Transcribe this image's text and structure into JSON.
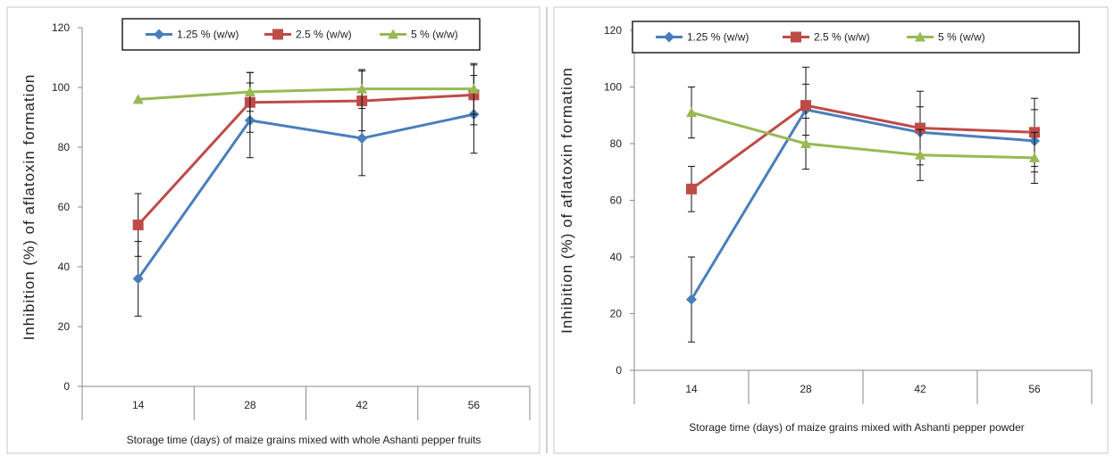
{
  "chart_data": [
    {
      "type": "line",
      "categories": [
        "14",
        "28",
        "42",
        "56"
      ],
      "ylabel": "Inhibition (%) of aflatoxin formation",
      "xlabel": "Storage time (days) of maize grains mixed with whole Ashanti pepper fruits",
      "ylim": [
        0,
        120
      ],
      "yticks": [
        0,
        20,
        40,
        60,
        80,
        100,
        120
      ],
      "legend_position": "top",
      "grid": false,
      "series": [
        {
          "name": "1.25 % (w/w)",
          "color": "#4a7ebb",
          "marker": "diamond",
          "values": [
            36,
            89,
            83,
            91
          ],
          "errors": [
            12.5,
            12.5,
            12.5,
            13
          ]
        },
        {
          "name": "2.5 % (w/w)",
          "color": "#be4b48",
          "marker": "square",
          "values": [
            54,
            95,
            95.5,
            97.5
          ],
          "errors": [
            10.5,
            10,
            10,
            10
          ]
        },
        {
          "name": "5 % (w/w)",
          "color": "#98b954",
          "marker": "triangle",
          "values": [
            96,
            98.5,
            99.5,
            99.5
          ],
          "errors": [
            0,
            6.5,
            6.5,
            8.5
          ]
        }
      ]
    },
    {
      "type": "line",
      "categories": [
        "14",
        "28",
        "42",
        "56"
      ],
      "ylabel": "Inhibition (%) of aflatoxin formation",
      "xlabel": "Storage time (days) of maize grains mixed with Ashanti pepper powder",
      "ylim": [
        0,
        120
      ],
      "yticks": [
        0,
        20,
        40,
        60,
        80,
        100,
        120
      ],
      "legend_position": "top",
      "grid": false,
      "series": [
        {
          "name": "1.25 % (w/w)",
          "color": "#4a7ebb",
          "marker": "diamond",
          "values": [
            25,
            92,
            84,
            81
          ],
          "errors": [
            15,
            9,
            9,
            11
          ]
        },
        {
          "name": "2.5 % (w/w)",
          "color": "#be4b48",
          "marker": "square",
          "values": [
            64,
            93.5,
            85.5,
            84
          ],
          "errors": [
            8,
            13.5,
            13,
            12
          ]
        },
        {
          "name": "5 % (w/w)",
          "color": "#98b954",
          "marker": "triangle",
          "values": [
            91,
            80,
            76,
            75
          ],
          "errors": [
            9,
            9,
            9,
            9
          ]
        }
      ]
    }
  ]
}
